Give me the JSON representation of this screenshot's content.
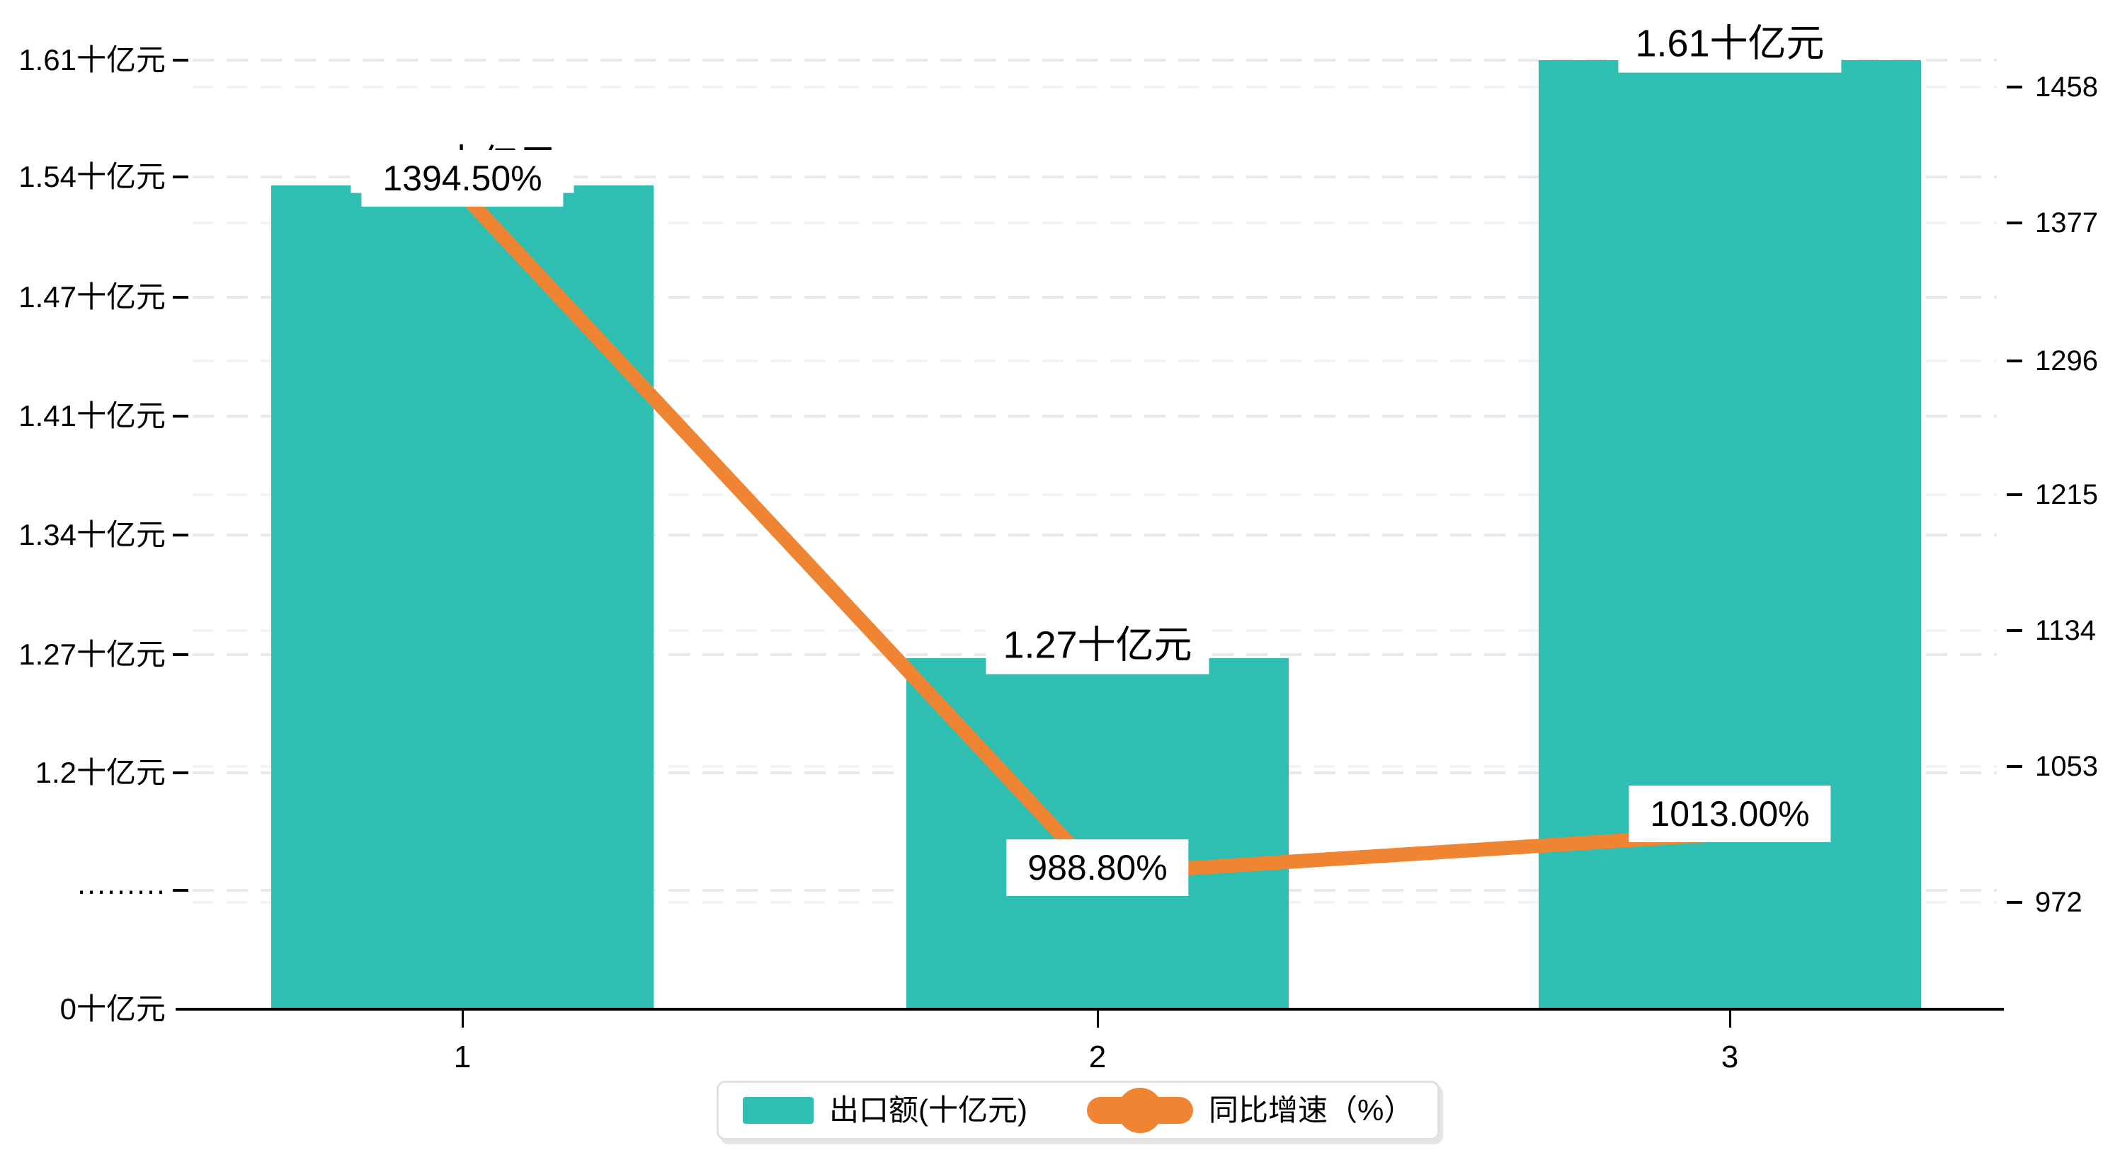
{
  "chart_data": {
    "type": "combo-bar-line",
    "categories": [
      "1",
      "2",
      "3"
    ],
    "series": [
      {
        "name": "出口额(十亿元)",
        "type": "bar",
        "axis": "left",
        "color": "#2FBEB2",
        "values": [
          1.54,
          1.27,
          1.61
        ],
        "data_labels": [
          "1.54十亿元",
          "1.27十亿元",
          "1.61十亿元"
        ]
      },
      {
        "name": "同比增速（%）",
        "type": "line",
        "axis": "right",
        "color": "#EF8432",
        "values": [
          1394.5,
          988.8,
          1013.0
        ],
        "data_labels": [
          "1394.50%",
          "988.80%",
          "1013.00%"
        ]
      }
    ],
    "left_axis": {
      "tick_labels": [
        "1.61十亿元",
        "1.54十亿元",
        "1.47十亿元",
        "1.41十亿元",
        "1.34十亿元",
        "1.27十亿元",
        "1.2十亿元",
        "·········"
      ],
      "zero_label": "0十亿元"
    },
    "right_axis": {
      "tick_labels": [
        "1458",
        "1377",
        "1296",
        "1215",
        "1134",
        "1053",
        "972"
      ]
    },
    "legend": {
      "position": "bottom",
      "items": [
        {
          "label": "出口额(十亿元)",
          "marker": "rect",
          "color": "#2FBEB2"
        },
        {
          "label": "同比增速（%）",
          "marker": "line-dot",
          "color": "#EF8432"
        }
      ]
    },
    "grid": "dashed",
    "background": "#ffffff",
    "title": ""
  }
}
